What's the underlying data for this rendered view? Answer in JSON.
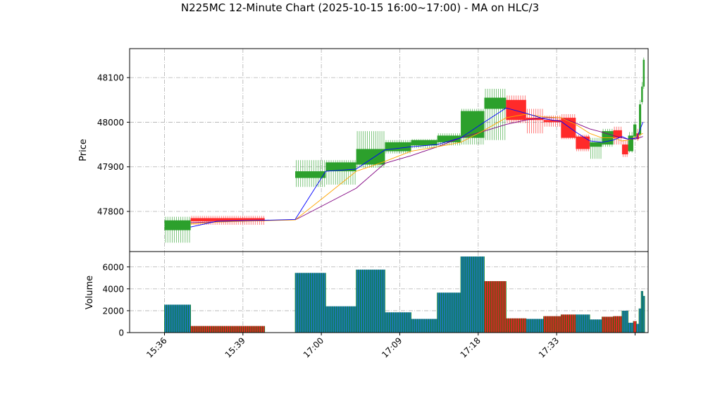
{
  "chart_data": {
    "type": "candlestick",
    "title": "N225MC 12-Minute Chart (2025-10-15 16:00~17:00) - MA on HLC/3",
    "price_ylabel": "Price",
    "volume_ylabel": "Volume",
    "price_ylim": [
      47710,
      48165
    ],
    "volume_ylim": [
      0,
      7400
    ],
    "price_yticks": [
      47800,
      47900,
      48000,
      48100
    ],
    "volume_yticks": [
      0,
      2000,
      4000,
      6000
    ],
    "xlim": [
      -4,
      55.5
    ],
    "xtick_positions": [
      0,
      9,
      18,
      27,
      36,
      45,
      54
    ],
    "xtick_labels": [
      "15:36",
      "15:39",
      "17:00",
      "17:09",
      "17:18",
      "17:33",
      ""
    ],
    "grid": true,
    "colors": {
      "up": "#2ca02c",
      "down": "#ff2a2a",
      "vol_up": "#1f77b4",
      "vol_down": "#d62728",
      "vol_edge": "#008000",
      "ma_short": "#0000ff",
      "ma_mid": "#ffa500",
      "ma_long": "#800080"
    },
    "candles": [
      {
        "x": 0,
        "w": 3,
        "o": 47758,
        "c": 47780,
        "h": 47788,
        "l": 47730
      },
      {
        "x": 3,
        "w": 8.5,
        "o": 47785,
        "c": 47778,
        "h": 47790,
        "l": 47770
      },
      {
        "x": 15,
        "w": 3.5,
        "o": 47875,
        "c": 47890,
        "h": 47915,
        "l": 47855
      },
      {
        "x": 18.5,
        "w": 3.5,
        "o": 47890,
        "c": 47910,
        "h": 47915,
        "l": 47860
      },
      {
        "x": 22,
        "w": 3.3,
        "o": 47905,
        "c": 47940,
        "h": 47980,
        "l": 47898
      },
      {
        "x": 25.3,
        "w": 3,
        "o": 47935,
        "c": 47955,
        "h": 47960,
        "l": 47930
      },
      {
        "x": 28.3,
        "w": 3,
        "o": 47948,
        "c": 47960,
        "h": 47962,
        "l": 47942
      },
      {
        "x": 31.3,
        "w": 2.7,
        "o": 47955,
        "c": 47970,
        "h": 47975,
        "l": 47948
      },
      {
        "x": 34,
        "w": 2.7,
        "o": 47965,
        "c": 48025,
        "h": 48030,
        "l": 47950
      },
      {
        "x": 36.7,
        "w": 2.5,
        "o": 48030,
        "c": 48055,
        "h": 48075,
        "l": 47960
      },
      {
        "x": 39.2,
        "w": 2.3,
        "o": 48050,
        "c": 48005,
        "h": 48060,
        "l": 47998
      },
      {
        "x": 41.5,
        "w": 2,
        "o": 48010,
        "c": 48005,
        "h": 48030,
        "l": 47975
      },
      {
        "x": 43.5,
        "w": 2,
        "o": 48005,
        "c": 48000,
        "h": 48015,
        "l": 47990
      },
      {
        "x": 45.5,
        "w": 1.7,
        "o": 48010,
        "c": 47965,
        "h": 48018,
        "l": 47962
      },
      {
        "x": 47.2,
        "w": 1.6,
        "o": 47968,
        "c": 47940,
        "h": 47972,
        "l": 47935
      },
      {
        "x": 48.8,
        "w": 1.4,
        "o": 47945,
        "c": 47955,
        "h": 47965,
        "l": 47918
      },
      {
        "x": 50.2,
        "w": 1.3,
        "o": 47950,
        "c": 47980,
        "h": 47985,
        "l": 47945
      },
      {
        "x": 51.5,
        "w": 1,
        "o": 47982,
        "c": 47965,
        "h": 47990,
        "l": 47950
      },
      {
        "x": 52.5,
        "w": 0.7,
        "o": 47950,
        "c": 47928,
        "h": 47960,
        "l": 47922
      },
      {
        "x": 53.2,
        "w": 0.6,
        "o": 47935,
        "c": 47970,
        "h": 47978,
        "l": 47932
      },
      {
        "x": 53.8,
        "w": 0.35,
        "o": 47968,
        "c": 47995,
        "h": 48000,
        "l": 47960
      },
      {
        "x": 54.15,
        "w": 0.3,
        "o": 47975,
        "c": 47962,
        "h": 47985,
        "l": 47958
      },
      {
        "x": 54.45,
        "w": 0.25,
        "o": 47972,
        "c": 48040,
        "h": 48050,
        "l": 47968
      },
      {
        "x": 54.7,
        "w": 0.2,
        "o": 48045,
        "c": 48080,
        "h": 48090,
        "l": 48040
      },
      {
        "x": 54.9,
        "w": 0.2,
        "o": 48080,
        "c": 48140,
        "h": 48145,
        "l": 48075
      }
    ],
    "volume": [
      {
        "x": 0,
        "w": 3,
        "v": 2550,
        "up": true
      },
      {
        "x": 3,
        "w": 8.5,
        "v": 600,
        "up": false
      },
      {
        "x": 15,
        "w": 3.5,
        "v": 5450,
        "up": true
      },
      {
        "x": 18.5,
        "w": 3.5,
        "v": 2400,
        "up": true
      },
      {
        "x": 22,
        "w": 3.3,
        "v": 5750,
        "up": true
      },
      {
        "x": 25.3,
        "w": 3,
        "v": 1850,
        "up": true
      },
      {
        "x": 28.3,
        "w": 3,
        "v": 1250,
        "up": true
      },
      {
        "x": 31.3,
        "w": 2.7,
        "v": 3650,
        "up": true
      },
      {
        "x": 34,
        "w": 2.7,
        "v": 6950,
        "up": true
      },
      {
        "x": 36.7,
        "w": 2.5,
        "v": 4700,
        "up": false
      },
      {
        "x": 39.2,
        "w": 2.3,
        "v": 1300,
        "up": false
      },
      {
        "x": 41.5,
        "w": 2,
        "v": 1250,
        "up": true
      },
      {
        "x": 43.5,
        "w": 2,
        "v": 1500,
        "up": false
      },
      {
        "x": 45.5,
        "w": 1.7,
        "v": 1650,
        "up": false
      },
      {
        "x": 47.2,
        "w": 1.6,
        "v": 1650,
        "up": true
      },
      {
        "x": 48.8,
        "w": 1.4,
        "v": 1200,
        "up": true
      },
      {
        "x": 50.2,
        "w": 1.3,
        "v": 1450,
        "up": false
      },
      {
        "x": 51.5,
        "w": 1,
        "v": 1500,
        "up": false
      },
      {
        "x": 52.5,
        "w": 0.7,
        "v": 2000,
        "up": true
      },
      {
        "x": 53.2,
        "w": 0.6,
        "v": 900,
        "up": true
      },
      {
        "x": 53.8,
        "w": 0.35,
        "v": 1050,
        "up": false
      },
      {
        "x": 54.15,
        "w": 0.3,
        "v": 800,
        "up": true
      },
      {
        "x": 54.45,
        "w": 0.25,
        "v": 2200,
        "up": true
      },
      {
        "x": 54.7,
        "w": 0.2,
        "v": 3800,
        "up": true
      },
      {
        "x": 54.9,
        "w": 0.2,
        "v": 3350,
        "up": true
      }
    ],
    "ma_short": {
      "x": [
        3,
        6,
        11,
        15,
        18.5,
        22,
        25.3,
        28.3,
        31.3,
        34,
        36.7,
        39.2,
        41.5,
        43.5,
        45.5,
        47.2,
        48.8,
        50.2,
        51.5,
        52.5,
        53.2,
        54.2,
        54.9
      ],
      "y": [
        47765,
        47778,
        47780,
        47782,
        47890,
        47895,
        47938,
        47945,
        47950,
        47965,
        48000,
        48032,
        48020,
        48008,
        48002,
        47978,
        47958,
        47955,
        47960,
        47968,
        47962,
        47965,
        48000
      ]
    },
    "ma_mid": {
      "x": [
        3,
        6,
        11,
        15,
        18.5,
        22,
        25.3,
        28.3,
        31.3,
        34,
        36.7,
        39.2,
        41.5,
        43.5,
        45.5,
        47.2,
        48.8,
        50.2,
        51.5,
        52.5,
        53.2,
        54.2,
        54.9
      ],
      "y": [
        47772,
        47776,
        47779,
        47781,
        47835,
        47890,
        47912,
        47935,
        47945,
        47955,
        47982,
        48010,
        48018,
        48012,
        48010,
        47995,
        47975,
        47965,
        47965,
        47958,
        47960,
        47968,
        47975
      ]
    },
    "ma_long": {
      "x": [
        3,
        11,
        15,
        22,
        25.3,
        28.3,
        31.3,
        34,
        36.7,
        39.2,
        41.5,
        43.5,
        45.5,
        47.2,
        48.8,
        50.2,
        51.5,
        52.5,
        53.2,
        54.2,
        54.9
      ],
      "y": [
        47775,
        47780,
        47781,
        47852,
        47908,
        47925,
        47945,
        47965,
        47980,
        47995,
        48005,
        48010,
        48010,
        47998,
        47985,
        47978,
        47970,
        47965,
        47962,
        47963,
        47968
      ]
    }
  }
}
